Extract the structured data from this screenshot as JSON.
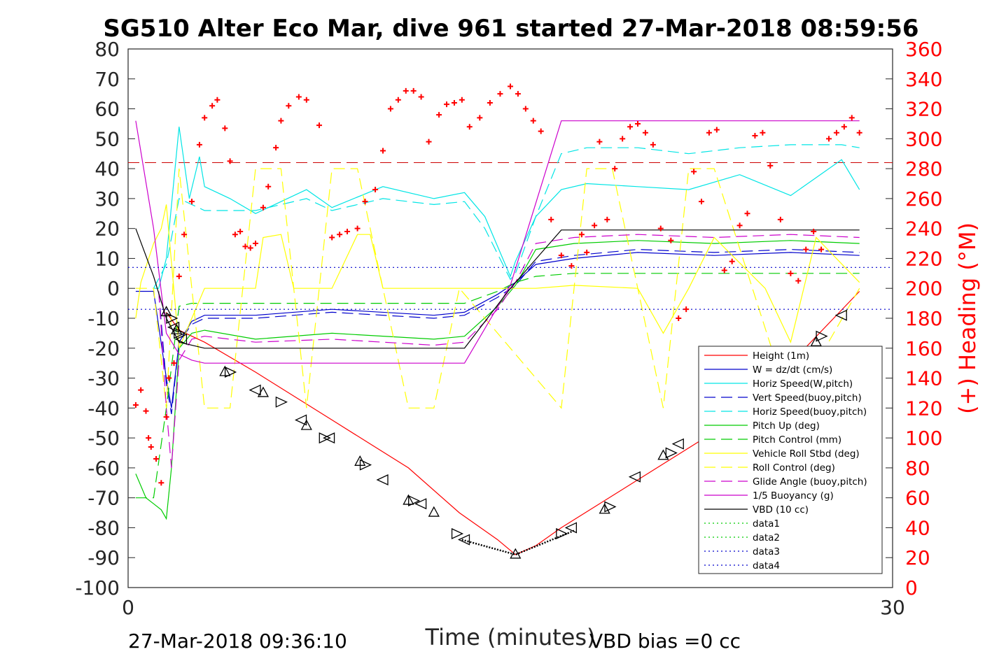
{
  "chart_data": {
    "type": "line",
    "title": "SG510 Alter Eco Mar, dive 961 started 27-Mar-2018 08:59:56",
    "xlabel": "Time (minutes)",
    "ylabel": "",
    "ylabel_right": "(+) Heading (°M)",
    "xlim": [
      0,
      30
    ],
    "ylim": [
      -100,
      80
    ],
    "ylim_right": [
      0,
      360
    ],
    "x_ticks": [
      "0",
      "30"
    ],
    "y_ticks": [
      "80",
      "70",
      "60",
      "50",
      "40",
      "30",
      "20",
      "10",
      "0",
      "-10",
      "-20",
      "-30",
      "-40",
      "-50",
      "-60",
      "-70",
      "-80",
      "-90",
      "-100"
    ],
    "y_ticks_right": [
      "360",
      "340",
      "320",
      "300",
      "280",
      "260",
      "240",
      "220",
      "200",
      "180",
      "160",
      "140",
      "120",
      "100",
      "80",
      "60",
      "40",
      "20",
      "0"
    ],
    "grid": false,
    "legend_position": "bottom-right",
    "footer_left": "27-Mar-2018 09:36:10",
    "footer_right": "VBD bias =0 cc",
    "series": [
      {
        "name": "Height (1m)",
        "color": "#ff0000",
        "style": "solid",
        "x": [
          1.5,
          2.0,
          3.0,
          5.0,
          8.0,
          11.0,
          13.0,
          14.5,
          15.2,
          16.0,
          17.0,
          20.0,
          23.0,
          26.0,
          28.7
        ],
        "y": [
          -8,
          -14,
          -18,
          -28,
          -44,
          -60,
          -75,
          -84,
          -89,
          -86,
          -80,
          -64,
          -48,
          -25,
          -1
        ]
      },
      {
        "name": "W = dz/dt (cm/s)",
        "color": "#0000cc",
        "style": "solid",
        "x": [
          0.3,
          1.0,
          1.5,
          1.7,
          2.0,
          2.5,
          3.0,
          5.0,
          8.0,
          12.0,
          13.2,
          14.5,
          15.2,
          16.0,
          17.5,
          20.0,
          23.0,
          26.0,
          28.7
        ],
        "y": [
          -1,
          -1,
          -30,
          -40,
          -18,
          -11,
          -9,
          -9,
          -7,
          -9,
          -8,
          -2,
          2,
          8,
          10,
          12,
          11,
          12,
          11
        ]
      },
      {
        "name": "Horiz Speed(W,pitch)",
        "color": "#00e5e5",
        "style": "solid",
        "x": [
          1.0,
          1.2,
          1.5,
          2.0,
          2.4,
          2.8,
          3.0,
          4.0,
          5.0,
          7.0,
          8.0,
          10.0,
          12.0,
          13.2,
          14.0,
          15.0,
          15.2,
          16.0,
          17.0,
          18.0,
          20.0,
          22.0,
          24.0,
          26.0,
          28.0,
          28.7
        ],
        "y": [
          0,
          0,
          10,
          54,
          30,
          44,
          34,
          30,
          25,
          33,
          27,
          34,
          30,
          32,
          24,
          4,
          9,
          24,
          33,
          35,
          34,
          33,
          38,
          31,
          43,
          33
        ]
      },
      {
        "name": "Vert Speed(buoy,pitch)",
        "color": "#0000cc",
        "style": "dashed",
        "x": [
          1.2,
          1.5,
          1.7,
          2.0,
          2.5,
          3.0,
          5.0,
          8.0,
          12.0,
          13.2,
          14.5,
          15.2,
          16.0,
          17.5,
          20.0,
          23.0,
          26.0,
          28.7
        ],
        "y": [
          -1,
          -32,
          -42,
          -18,
          -12,
          -10,
          -10,
          -8,
          -10,
          -9,
          -3,
          1,
          9,
          11,
          13,
          12,
          13,
          12
        ]
      },
      {
        "name": "Horiz Speed(buoy,pitch)",
        "color": "#00e5e5",
        "style": "dashed",
        "x": [
          1.0,
          1.5,
          2.0,
          2.5,
          3.0,
          5.0,
          7.0,
          8.0,
          10.0,
          12.0,
          13.2,
          14.0,
          15.0,
          15.2,
          16.0,
          17.0,
          18.0,
          20.0,
          22.0,
          24.0,
          26.0,
          28.0,
          28.7
        ],
        "y": [
          0,
          8,
          30,
          28,
          26,
          26,
          30,
          26,
          30,
          28,
          29,
          20,
          3,
          5,
          24,
          45,
          47,
          47,
          45,
          47,
          48,
          48,
          47
        ]
      },
      {
        "name": "Pitch Up (deg)",
        "color": "#00cc00",
        "style": "solid",
        "x": [
          0.3,
          0.7,
          1.0,
          1.3,
          1.5,
          1.7,
          2.0,
          2.5,
          3.0,
          5.0,
          8.0,
          12.0,
          13.2,
          14.5,
          15.2,
          16.0,
          17.5,
          20.0,
          23.0,
          26.0,
          28.7
        ],
        "y": [
          -62,
          -70,
          -72,
          -74,
          -77,
          -60,
          -20,
          -15,
          -14,
          -17,
          -15,
          -17,
          -16,
          -6,
          1,
          13,
          15,
          16,
          15,
          16,
          15
        ]
      },
      {
        "name": "Pitch Control (mm)",
        "color": "#00cc00",
        "style": "dashed",
        "x": [
          0.3,
          1.0,
          1.5,
          2.0,
          2.5,
          3.0,
          13.2,
          14.5,
          15.2,
          16.0,
          17.5,
          28.7
        ],
        "y": [
          -70,
          -70,
          -40,
          -6,
          -5,
          -5,
          -5,
          -1,
          2,
          4,
          5,
          5
        ]
      },
      {
        "name": "Vehicle Roll Stbd (deg)",
        "color": "#ffff00",
        "style": "solid",
        "x": [
          0.3,
          0.5,
          1.0,
          1.3,
          1.5,
          2.0,
          2.3,
          3.0,
          5.0,
          5.3,
          6.0,
          6.5,
          8.0,
          9.0,
          9.5,
          10.0,
          13.0,
          14.0,
          15.0,
          16.0,
          17.5,
          20.0,
          21.0,
          22.0,
          23.0,
          25.0,
          26.0,
          27.0,
          28.7
        ],
        "y": [
          -10,
          2,
          15,
          20,
          28,
          -20,
          -14,
          0,
          0,
          17,
          18,
          0,
          0,
          18,
          18,
          0,
          0,
          0,
          0,
          0,
          1,
          0,
          -15,
          0,
          17,
          0,
          -18,
          17,
          2
        ]
      },
      {
        "name": "Roll Control (deg)",
        "color": "#ffff00",
        "style": "dashed",
        "x": [
          0.3,
          1.0,
          1.5,
          2.0,
          3.0,
          4.0,
          5.0,
          6.0,
          7.0,
          8.0,
          9.0,
          11.0,
          12.0,
          13.0,
          17.0,
          18.0,
          19.0,
          21.0,
          22.0,
          23.0,
          26.0,
          28.7
        ],
        "y": [
          0,
          0,
          -40,
          40,
          -40,
          -40,
          40,
          40,
          -40,
          40,
          40,
          -40,
          -40,
          0,
          -40,
          40,
          40,
          -40,
          40,
          40,
          -40,
          0
        ]
      },
      {
        "name": "Glide Angle (buoy,pitch)",
        "color": "#cc00cc",
        "style": "dashed",
        "x": [
          1.2,
          1.5,
          1.7,
          2.0,
          2.5,
          3.0,
          5.0,
          8.0,
          12.0,
          13.2,
          14.5,
          15.2,
          16.0,
          17.5,
          20.0,
          23.0,
          26.0,
          28.7
        ],
        "y": [
          -1,
          -40,
          -60,
          -24,
          -17,
          -16,
          -18,
          -17,
          -19,
          -18,
          -7,
          2,
          15,
          17,
          18,
          17,
          18,
          17
        ]
      },
      {
        "name": "1/5 Buoyancy (g)",
        "color": "#cc00cc",
        "style": "solid",
        "x": [
          0.3,
          1.0,
          1.5,
          2.0,
          2.5,
          3.0,
          13.2,
          15.0,
          17.0,
          28.7
        ],
        "y": [
          56,
          20,
          -15,
          -22,
          -24,
          -25,
          -25,
          1,
          56,
          56
        ]
      },
      {
        "name": "VBD (10 cc)",
        "color": "#000000",
        "style": "solid",
        "x": [
          0.3,
          1.0,
          1.5,
          2.0,
          3.0,
          13.2,
          15.0,
          17.0,
          28.7
        ],
        "y": [
          20,
          4,
          -10,
          -18,
          -20,
          -20,
          0,
          19.5,
          19.5
        ]
      },
      {
        "name": "data1",
        "color": "#00cc00",
        "style": "dotted",
        "x": [],
        "y": []
      },
      {
        "name": "data2",
        "color": "#00cc00",
        "style": "dotted",
        "x": [],
        "y": []
      },
      {
        "name": "data3",
        "color": "#0000cc",
        "style": "dotted",
        "x": [
          0,
          29.9
        ],
        "y": [
          7,
          7
        ]
      },
      {
        "name": "data4",
        "color": "#0000cc",
        "style": "dotted",
        "x": [
          0,
          29.9
        ],
        "y": [
          -7,
          -7
        ]
      }
    ],
    "reference_line": {
      "color": "#cc0000",
      "style": "dashed",
      "y": 42
    },
    "dense_overlay": {
      "color": "#000000",
      "x": [
        13.1,
        15.2,
        17.5
      ],
      "y": [
        -84,
        -89,
        -81
      ]
    },
    "heading": {
      "name": "(+) Heading (°M)",
      "color": "#ff0000",
      "marker": "+",
      "x": [
        0.3,
        0.5,
        0.7,
        0.8,
        0.9,
        1.1,
        1.3,
        1.5,
        1.6,
        1.8,
        2.0,
        2.2,
        2.5,
        2.8,
        3.0,
        3.3,
        3.5,
        3.8,
        4.0,
        4.2,
        4.4,
        4.6,
        4.8,
        5.0,
        5.3,
        5.5,
        5.8,
        6.0,
        6.3,
        6.7,
        7.0,
        7.5,
        8.0,
        8.3,
        8.6,
        9.0,
        9.3,
        9.7,
        10.0,
        10.3,
        10.6,
        10.9,
        11.2,
        11.5,
        11.8,
        12.2,
        12.5,
        12.8,
        13.1,
        13.4,
        13.8,
        14.2,
        14.6,
        15.0,
        15.3,
        15.6,
        15.9,
        16.2,
        16.6,
        17.0,
        17.4,
        17.8,
        18.0,
        18.3,
        18.5,
        18.8,
        19.1,
        19.4,
        19.7,
        20.0,
        20.3,
        20.6,
        20.9,
        21.3,
        21.6,
        21.9,
        22.2,
        22.5,
        22.8,
        23.1,
        23.4,
        23.7,
        24.0,
        24.3,
        24.6,
        24.9,
        25.2,
        25.6,
        26.0,
        26.3,
        26.6,
        26.9,
        27.2,
        27.5,
        27.8,
        28.1,
        28.4,
        28.7
      ],
      "y": [
        122,
        132,
        118,
        100,
        94,
        86,
        70,
        114,
        140,
        150,
        208,
        236,
        258,
        296,
        314,
        322,
        326,
        307,
        285,
        236,
        238,
        228,
        227,
        230,
        254,
        268,
        294,
        312,
        322,
        328,
        326,
        309,
        234,
        236,
        238,
        240,
        258,
        266,
        292,
        320,
        326,
        332,
        332,
        328,
        298,
        316,
        323,
        324,
        326,
        308,
        314,
        324,
        330,
        335,
        330,
        320,
        312,
        305,
        246,
        222,
        215,
        236,
        224,
        242,
        298,
        246,
        280,
        300,
        308,
        310,
        304,
        296,
        240,
        232,
        180,
        186,
        278,
        258,
        304,
        306,
        212,
        218,
        242,
        250,
        302,
        304,
        282,
        246,
        210,
        205,
        226,
        238,
        226,
        300,
        304,
        308,
        314,
        304
      ]
    },
    "triangles": {
      "color": "#000000",
      "marker": "triangle",
      "x": [
        1.5,
        1.7,
        1.8,
        1.9,
        2.0,
        2.1,
        3.8,
        4.0,
        5.0,
        5.3,
        6.0,
        6.8,
        7.0,
        7.7,
        7.9,
        9.1,
        9.3,
        10.0,
        11.0,
        11.2,
        11.5,
        12.0,
        12.9,
        13.2,
        15.2,
        17.0,
        17.4,
        18.7,
        18.9,
        19.9,
        21.0,
        21.3,
        21.6,
        27.0,
        27.2,
        28.0
      ],
      "y": [
        -8,
        -10,
        -13,
        -14,
        -15,
        -17,
        -28,
        -28,
        -34,
        -35,
        -38,
        -44,
        -46,
        -50,
        -50,
        -58,
        -59,
        -64,
        -71,
        -71,
        -72,
        -75,
        -82,
        -84,
        -89,
        -82,
        -80,
        -74,
        -73,
        -63,
        -56,
        -55,
        -52,
        -18,
        -16,
        -9
      ]
    }
  }
}
